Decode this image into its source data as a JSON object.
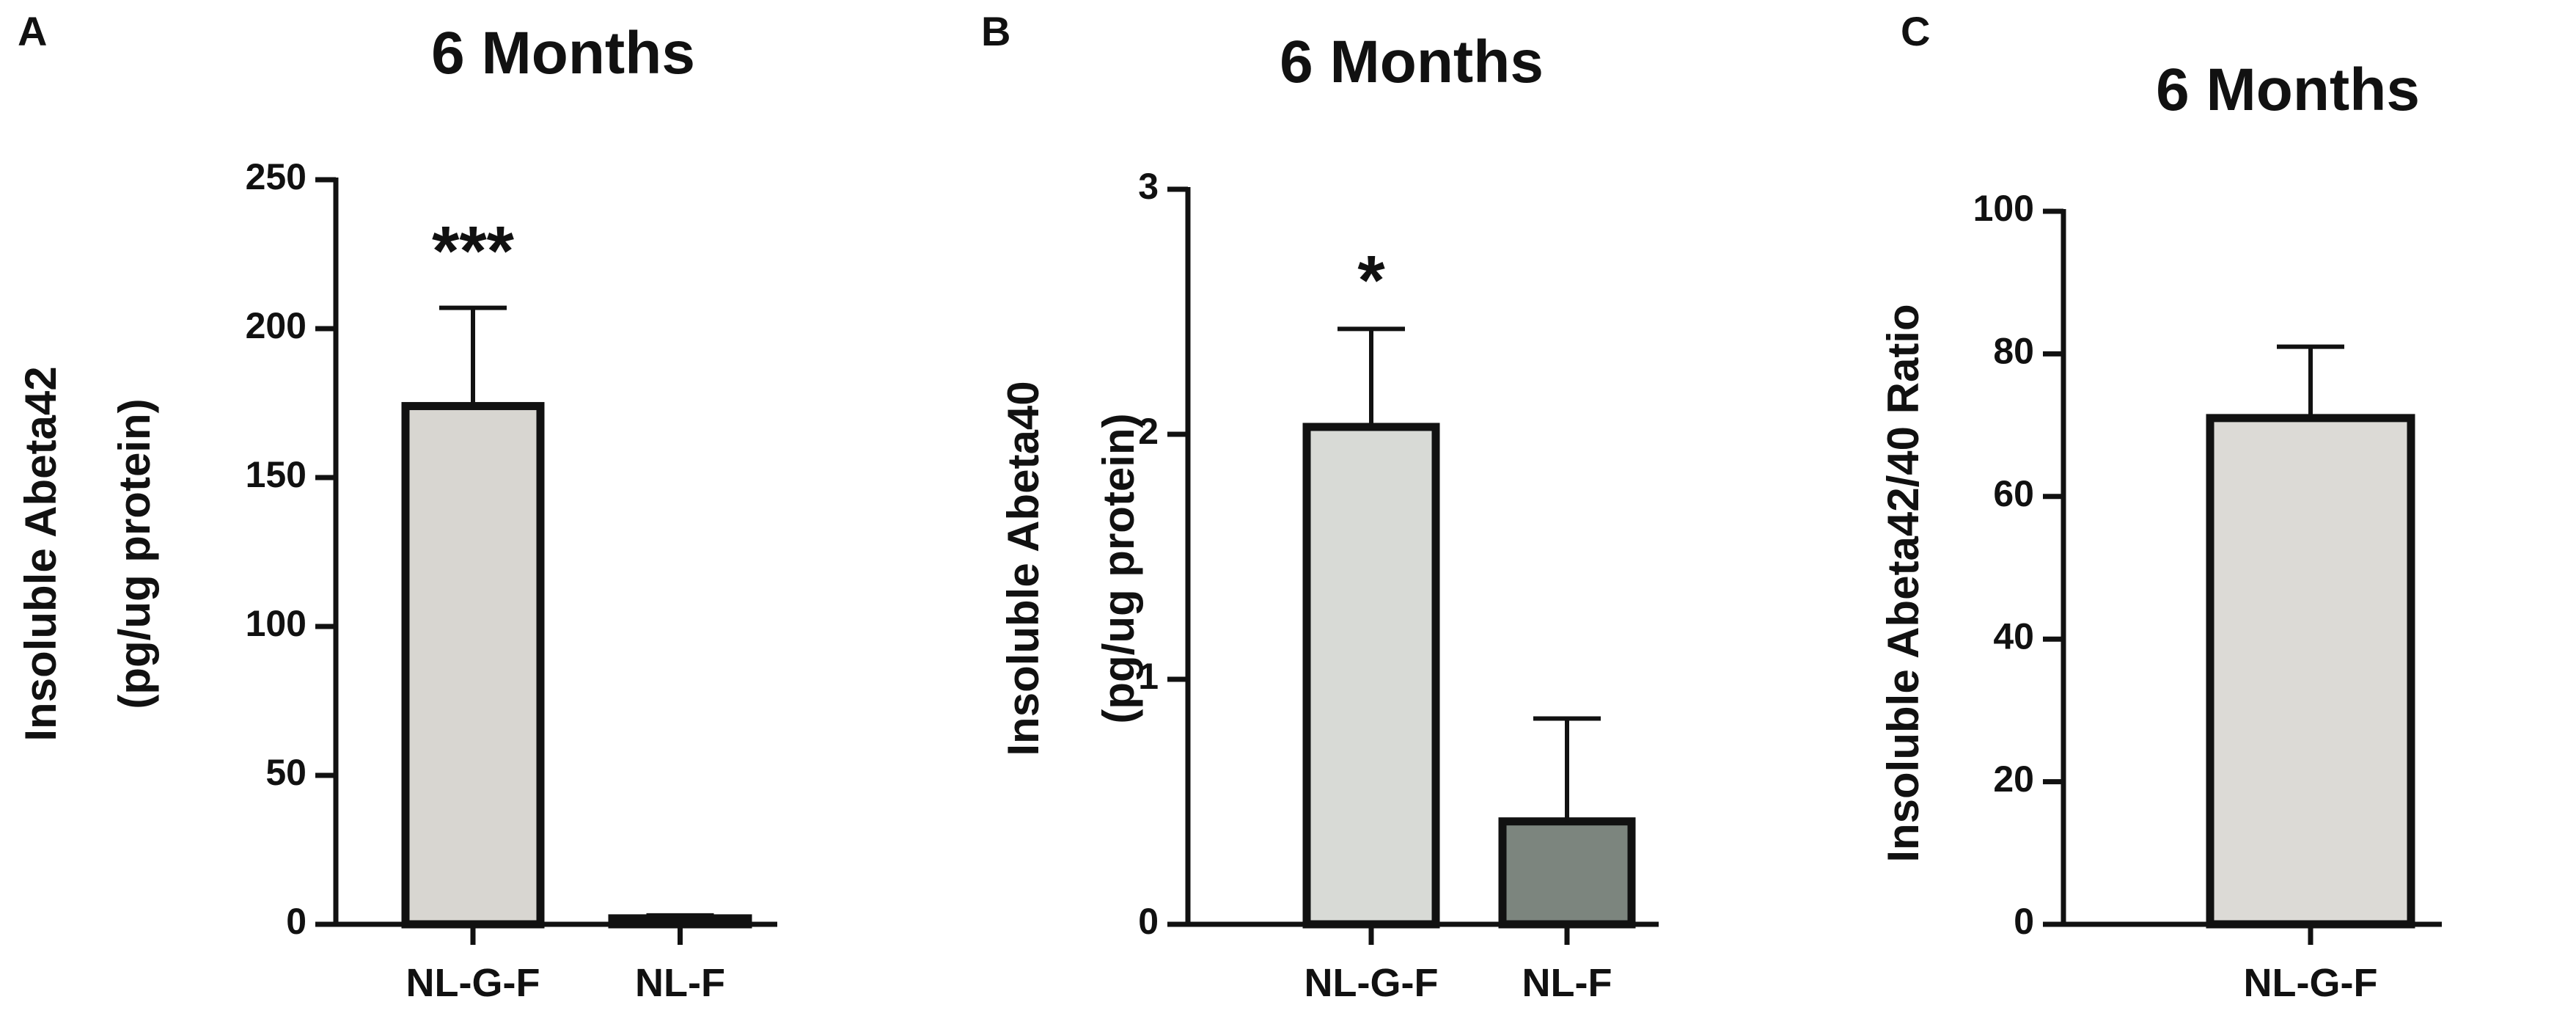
{
  "chart_data": [
    {
      "panel": "A",
      "type": "bar",
      "title": "6 Months",
      "ylabel": [
        "Insoluble Abeta42",
        "(pg/ug protein)"
      ],
      "xlabel": "",
      "ylim": [
        0,
        250
      ],
      "yticks": [
        0,
        50,
        100,
        150,
        200,
        250
      ],
      "categories": [
        "NL-G-F",
        "NL-F"
      ],
      "values": [
        174,
        2
      ],
      "errors": [
        33,
        1
      ],
      "bar_colors": [
        "#d8d6d1",
        "#7c857e"
      ],
      "annotations": [
        "***",
        ""
      ]
    },
    {
      "panel": "B",
      "type": "bar",
      "title": "6 Months",
      "ylabel": [
        "Insoluble Abeta40",
        "(pg/ug protein)"
      ],
      "xlabel": "",
      "ylim": [
        0,
        3
      ],
      "yticks": [
        0,
        1,
        2,
        3
      ],
      "categories": [
        "NL-G-F",
        "NL-F"
      ],
      "values": [
        2.03,
        0.42
      ],
      "errors": [
        0.4,
        0.42
      ],
      "bar_colors": [
        "#d8dad6",
        "#7c857e"
      ],
      "annotations": [
        "*",
        ""
      ]
    },
    {
      "panel": "C",
      "type": "bar",
      "title": "6 Months",
      "ylabel": [
        "Insoluble Abeta42/40 Ratio"
      ],
      "xlabel": "",
      "ylim": [
        0,
        100
      ],
      "yticks": [
        0,
        20,
        40,
        60,
        80,
        100
      ],
      "categories": [
        "NL-G-F"
      ],
      "values": [
        71
      ],
      "errors": [
        10
      ],
      "bar_colors": [
        "#dcdad6"
      ],
      "annotations": [
        ""
      ]
    }
  ]
}
